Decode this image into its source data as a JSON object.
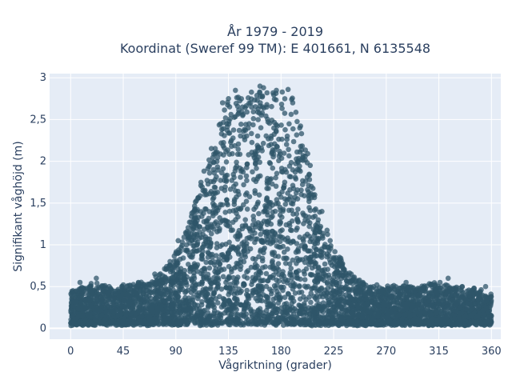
{
  "chart_data": {
    "type": "scatter",
    "title_line1": "År 1979 - 2019",
    "title_line2": "Koordinat (Sweref 99 TM): E 401661, N 6135548",
    "xlabel": "Vågriktning (grader)",
    "ylabel": "Signifikant våghöjd (m)",
    "xlim": [
      -18,
      368
    ],
    "ylim": [
      -0.13,
      3.05
    ],
    "x_ticks": [
      0,
      45,
      90,
      135,
      180,
      225,
      270,
      315,
      360
    ],
    "x_tick_labels": [
      "0",
      "45",
      "90",
      "135",
      "180",
      "225",
      "270",
      "315",
      "360"
    ],
    "y_ticks": [
      0,
      0.5,
      1,
      1.5,
      2,
      2.5,
      3
    ],
    "y_tick_labels": [
      "0",
      "0,5",
      "1",
      "1,5",
      "2",
      "2,5",
      "3"
    ],
    "grid": true,
    "plot_background": "#e5ecf6",
    "grid_color": "#ffffff",
    "marker_color": "#2f5569",
    "envelope": {
      "x": [
        0,
        10,
        20,
        30,
        40,
        50,
        60,
        70,
        80,
        90,
        100,
        110,
        120,
        130,
        135,
        140,
        150,
        160,
        170,
        180,
        190,
        200,
        210,
        220,
        230,
        240,
        250,
        260,
        270,
        280,
        290,
        300,
        310,
        320,
        330,
        340,
        350,
        360
      ],
      "y_max": [
        0.45,
        0.5,
        0.55,
        0.5,
        0.48,
        0.52,
        0.55,
        0.58,
        0.7,
        0.9,
        1.25,
        1.7,
        2.2,
        2.6,
        2.75,
        2.8,
        2.85,
        2.88,
        2.85,
        2.85,
        2.75,
        2.3,
        1.6,
        1.15,
        0.85,
        0.65,
        0.55,
        0.5,
        0.5,
        0.52,
        0.5,
        0.5,
        0.55,
        0.52,
        0.5,
        0.48,
        0.45,
        0.4
      ],
      "y_min": 0.05
    },
    "outliers": [
      {
        "x": 2,
        "y": 0.45
      },
      {
        "x": 8,
        "y": 0.55
      },
      {
        "x": 22,
        "y": 0.6
      },
      {
        "x": 33,
        "y": 0.5
      },
      {
        "x": 45,
        "y": 0.52
      },
      {
        "x": 58,
        "y": 0.55
      },
      {
        "x": 72,
        "y": 0.65
      },
      {
        "x": 85,
        "y": 0.8
      },
      {
        "x": 92,
        "y": 1.05
      },
      {
        "x": 99,
        "y": 1.0
      },
      {
        "x": 108,
        "y": 1.4
      },
      {
        "x": 115,
        "y": 1.6
      },
      {
        "x": 130,
        "y": 2.7
      },
      {
        "x": 135,
        "y": 2.75
      },
      {
        "x": 141,
        "y": 2.85
      },
      {
        "x": 147,
        "y": 2.65
      },
      {
        "x": 162,
        "y": 2.9
      },
      {
        "x": 165,
        "y": 2.88
      },
      {
        "x": 168,
        "y": 2.82
      },
      {
        "x": 176,
        "y": 2.85
      },
      {
        "x": 181,
        "y": 2.83
      },
      {
        "x": 186,
        "y": 2.86
      },
      {
        "x": 190,
        "y": 2.7
      },
      {
        "x": 196,
        "y": 2.4
      },
      {
        "x": 205,
        "y": 1.95
      },
      {
        "x": 215,
        "y": 1.4
      },
      {
        "x": 222,
        "y": 1.05
      },
      {
        "x": 230,
        "y": 0.85
      },
      {
        "x": 240,
        "y": 0.65
      },
      {
        "x": 250,
        "y": 0.55
      },
      {
        "x": 262,
        "y": 0.52
      },
      {
        "x": 275,
        "y": 0.5
      },
      {
        "x": 287,
        "y": 0.55
      },
      {
        "x": 297,
        "y": 0.48
      },
      {
        "x": 309,
        "y": 0.52
      },
      {
        "x": 316,
        "y": 0.55
      },
      {
        "x": 323,
        "y": 0.6
      },
      {
        "x": 335,
        "y": 0.5
      },
      {
        "x": 345,
        "y": 0.48
      },
      {
        "x": 355,
        "y": 0.5
      }
    ]
  }
}
